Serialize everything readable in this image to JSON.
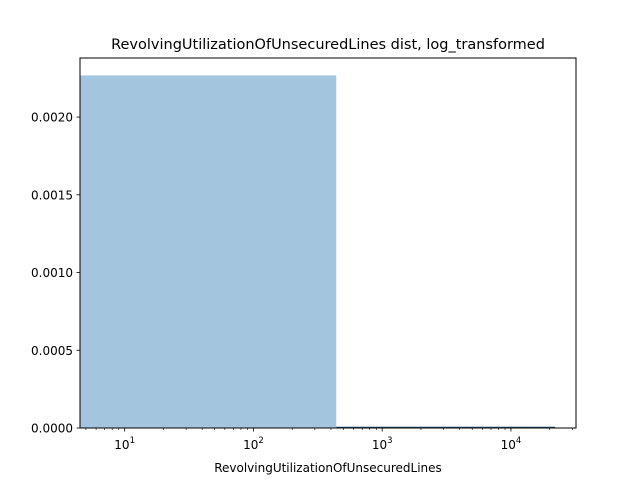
{
  "chart_data": {
    "type": "bar",
    "title": "RevolvingUtilizationOfUnsecuredLines dist, log_transformed",
    "xlabel": "RevolvingUtilizationOfUnsecuredLines",
    "ylabel": "",
    "xscale": "log",
    "xlim": [
      4.5,
      32000
    ],
    "ylim": [
      0,
      0.00238
    ],
    "grid": false,
    "bar_color": "#a3c6de",
    "line_color": "#1f4e79",
    "x_ticks": [
      {
        "value": 10,
        "base": "10",
        "exp": "1"
      },
      {
        "value": 100,
        "base": "10",
        "exp": "2"
      },
      {
        "value": 1000,
        "base": "10",
        "exp": "3"
      },
      {
        "value": 10000,
        "base": "10",
        "exp": "4"
      }
    ],
    "y_ticks": [
      {
        "value": 0,
        "label": "0.0000"
      },
      {
        "value": 0.0005,
        "label": "0.0005"
      },
      {
        "value": 0.001,
        "label": "0.0010"
      },
      {
        "value": 0.0015,
        "label": "0.0015"
      },
      {
        "value": 0.002,
        "label": "0.0020"
      }
    ],
    "bins": [
      {
        "x0": 0,
        "x1": 440,
        "density": 0.002268
      },
      {
        "x0": 440,
        "x1": 22000,
        "density": 2.5e-06
      }
    ]
  }
}
